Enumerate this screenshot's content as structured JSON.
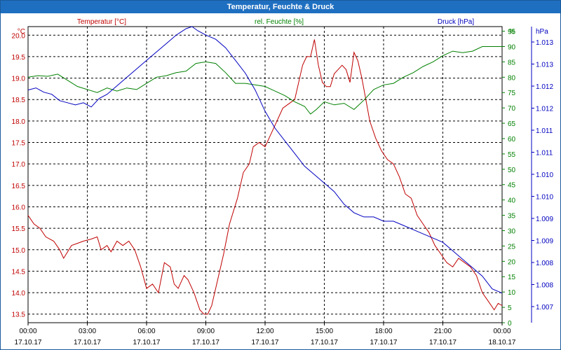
{
  "window": {
    "title": "Temperatur, Feuchte & Druck"
  },
  "colors": {
    "temperature": "#c00000",
    "humidity": "#008000",
    "pressure": "#0000c0",
    "grid": "#000000",
    "axis": "#000000",
    "titlebar": "#1f6fc1"
  },
  "chart_data": {
    "type": "line",
    "title": "Temperatur, Feuchte & Druck",
    "grid": true,
    "x": {
      "range_hours": [
        0,
        24
      ],
      "ticks": [
        {
          "time": "00:00",
          "date": "17.10.17"
        },
        {
          "time": "03:00",
          "date": "17.10.17"
        },
        {
          "time": "06:00",
          "date": "17.10.17"
        },
        {
          "time": "09:00",
          "date": "17.10.17"
        },
        {
          "time": "12:00",
          "date": "17.10.17"
        },
        {
          "time": "15:00",
          "date": "17.10.17"
        },
        {
          "time": "18:00",
          "date": "17.10.17"
        },
        {
          "time": "21:00",
          "date": "17.10.17"
        },
        {
          "time": "00:00",
          "date": "18.10.17"
        }
      ]
    },
    "axes": {
      "temperature": {
        "label": "Temperatur [°C]",
        "unit": "°C",
        "range": [
          13.3,
          20.2
        ],
        "ticks": [
          "13.5",
          "14.0",
          "14.5",
          "15.0",
          "15.5",
          "16.0",
          "16.5",
          "17.0",
          "17.5",
          "18.0",
          "18.5",
          "19.0",
          "19.5",
          "20.0"
        ]
      },
      "humidity": {
        "label": "rel. Feuchte [%]",
        "unit": "%",
        "range": [
          0,
          96.5
        ],
        "ticks": [
          "0",
          "5",
          "10",
          "15",
          "20",
          "25",
          "30",
          "35",
          "40",
          "45",
          "50",
          "55",
          "60",
          "65",
          "70",
          "75",
          "80",
          "85",
          "90",
          "95"
        ]
      },
      "pressure": {
        "label": "Druck [hPa]",
        "unit": "hPa",
        "range": [
          1.0065,
          1.0135
        ],
        "ticks": [
          "1.007",
          "1.008",
          "1.008",
          "1.009",
          "1.009",
          "1.010",
          "1.010",
          "1.011",
          "1.011",
          "1.012",
          "1.012",
          "1.013",
          "1.013"
        ]
      }
    },
    "series": [
      {
        "name": "Temperatur [°C]",
        "axis": "temperature",
        "points": [
          [
            0,
            15.8
          ],
          [
            0.3,
            15.6
          ],
          [
            0.6,
            15.5
          ],
          [
            0.9,
            15.3
          ],
          [
            1.3,
            15.2
          ],
          [
            1.6,
            15.0
          ],
          [
            1.8,
            14.8
          ],
          [
            2.2,
            15.1
          ],
          [
            2.5,
            15.15
          ],
          [
            2.8,
            15.2
          ],
          [
            3.2,
            15.25
          ],
          [
            3.5,
            15.3
          ],
          [
            3.7,
            15.0
          ],
          [
            4.0,
            15.1
          ],
          [
            4.2,
            14.95
          ],
          [
            4.5,
            15.2
          ],
          [
            4.8,
            15.1
          ],
          [
            5.1,
            15.2
          ],
          [
            5.4,
            15.0
          ],
          [
            5.7,
            14.6
          ],
          [
            6.0,
            14.1
          ],
          [
            6.3,
            14.2
          ],
          [
            6.6,
            14.0
          ],
          [
            6.9,
            14.7
          ],
          [
            7.2,
            14.6
          ],
          [
            7.4,
            14.2
          ],
          [
            7.6,
            14.1
          ],
          [
            7.9,
            14.4
          ],
          [
            8.1,
            14.3
          ],
          [
            8.4,
            14.0
          ],
          [
            8.7,
            13.6
          ],
          [
            8.9,
            13.5
          ],
          [
            9.1,
            13.5
          ],
          [
            9.3,
            13.7
          ],
          [
            9.6,
            14.3
          ],
          [
            9.9,
            14.9
          ],
          [
            10.2,
            15.6
          ],
          [
            10.6,
            16.2
          ],
          [
            10.9,
            16.8
          ],
          [
            11.2,
            17.0
          ],
          [
            11.4,
            17.4
          ],
          [
            11.7,
            17.5
          ],
          [
            12.0,
            17.4
          ],
          [
            12.3,
            17.7
          ],
          [
            12.6,
            18.0
          ],
          [
            12.9,
            18.3
          ],
          [
            13.2,
            18.4
          ],
          [
            13.5,
            18.5
          ],
          [
            13.7,
            18.9
          ],
          [
            13.9,
            19.3
          ],
          [
            14.1,
            19.5
          ],
          [
            14.3,
            19.5
          ],
          [
            14.5,
            19.9
          ],
          [
            14.7,
            19.3
          ],
          [
            14.9,
            18.9
          ],
          [
            15.1,
            18.8
          ],
          [
            15.3,
            18.8
          ],
          [
            15.5,
            19.1
          ],
          [
            15.7,
            19.2
          ],
          [
            15.9,
            19.3
          ],
          [
            16.1,
            19.2
          ],
          [
            16.3,
            18.9
          ],
          [
            16.5,
            19.6
          ],
          [
            16.7,
            19.4
          ],
          [
            16.9,
            19.0
          ],
          [
            17.1,
            18.5
          ],
          [
            17.3,
            18.0
          ],
          [
            17.6,
            17.6
          ],
          [
            17.9,
            17.3
          ],
          [
            18.2,
            17.1
          ],
          [
            18.5,
            17.0
          ],
          [
            18.8,
            16.7
          ],
          [
            19.1,
            16.3
          ],
          [
            19.4,
            16.2
          ],
          [
            19.7,
            15.8
          ],
          [
            20.0,
            15.6
          ],
          [
            20.3,
            15.4
          ],
          [
            20.6,
            15.1
          ],
          [
            20.9,
            14.9
          ],
          [
            21.2,
            14.7
          ],
          [
            21.5,
            14.6
          ],
          [
            21.8,
            14.8
          ],
          [
            22.1,
            14.7
          ],
          [
            22.4,
            14.6
          ],
          [
            22.7,
            14.4
          ],
          [
            23.0,
            14.0
          ],
          [
            23.3,
            13.8
          ],
          [
            23.6,
            13.6
          ],
          [
            23.8,
            13.75
          ],
          [
            24.0,
            13.7
          ]
        ]
      },
      {
        "name": "rel. Feuchte [%]",
        "axis": "humidity",
        "points": [
          [
            0,
            80
          ],
          [
            0.5,
            80.5
          ],
          [
            1.0,
            80.3
          ],
          [
            1.5,
            81
          ],
          [
            2.0,
            79
          ],
          [
            2.5,
            77
          ],
          [
            3.0,
            76
          ],
          [
            3.5,
            75
          ],
          [
            4.0,
            76.5
          ],
          [
            4.5,
            75.5
          ],
          [
            5.0,
            76.5
          ],
          [
            5.5,
            76
          ],
          [
            6.0,
            78
          ],
          [
            6.5,
            80
          ],
          [
            7.0,
            80.5
          ],
          [
            7.5,
            81.5
          ],
          [
            8.0,
            82
          ],
          [
            8.5,
            84.5
          ],
          [
            9.0,
            85
          ],
          [
            9.5,
            84.5
          ],
          [
            10.0,
            81.5
          ],
          [
            10.5,
            78
          ],
          [
            11.0,
            78
          ],
          [
            11.5,
            77.5
          ],
          [
            12.0,
            77
          ],
          [
            12.5,
            75.5
          ],
          [
            13.0,
            74
          ],
          [
            13.5,
            72
          ],
          [
            14.0,
            70.5
          ],
          [
            14.3,
            68
          ],
          [
            14.6,
            69.5
          ],
          [
            15.0,
            72
          ],
          [
            15.5,
            71
          ],
          [
            16.0,
            71.5
          ],
          [
            16.5,
            69.5
          ],
          [
            17.0,
            72.5
          ],
          [
            17.5,
            76
          ],
          [
            18.0,
            77.5
          ],
          [
            18.5,
            78
          ],
          [
            19.0,
            80
          ],
          [
            19.5,
            81.5
          ],
          [
            20.0,
            83.5
          ],
          [
            20.5,
            85
          ],
          [
            21.0,
            87
          ],
          [
            21.5,
            88.5
          ],
          [
            22.0,
            88
          ],
          [
            22.5,
            88.5
          ],
          [
            23.0,
            90
          ],
          [
            23.5,
            90
          ],
          [
            24.0,
            90
          ]
        ]
      },
      {
        "name": "Druck [hPa]",
        "axis": "pressure",
        "points": [
          [
            0,
            1.012
          ],
          [
            0.4,
            1.01205
          ],
          [
            0.8,
            1.01195
          ],
          [
            1.2,
            1.0119
          ],
          [
            1.6,
            1.01175
          ],
          [
            2.0,
            1.0117
          ],
          [
            2.4,
            1.01165
          ],
          [
            2.8,
            1.0117
          ],
          [
            3.2,
            1.0116
          ],
          [
            3.6,
            1.0118
          ],
          [
            4.0,
            1.0119
          ],
          [
            4.5,
            1.0121
          ],
          [
            5.0,
            1.0123
          ],
          [
            5.5,
            1.0125
          ],
          [
            6.0,
            1.0127
          ],
          [
            6.5,
            1.0129
          ],
          [
            7.0,
            1.0131
          ],
          [
            7.5,
            1.0133
          ],
          [
            8.0,
            1.01345
          ],
          [
            8.3,
            1.0135
          ],
          [
            8.6,
            1.0134
          ],
          [
            9.0,
            1.0133
          ],
          [
            9.5,
            1.0132
          ],
          [
            10.0,
            1.013
          ],
          [
            10.5,
            1.0127
          ],
          [
            11.0,
            1.0124
          ],
          [
            11.5,
            1.012
          ],
          [
            12.0,
            1.0115
          ],
          [
            12.5,
            1.0111
          ],
          [
            13.0,
            1.0108
          ],
          [
            13.5,
            1.0105
          ],
          [
            14.0,
            1.0102
          ],
          [
            14.5,
            1.01
          ],
          [
            15.0,
            1.0098
          ],
          [
            15.5,
            1.0096
          ],
          [
            16.0,
            1.0093
          ],
          [
            16.5,
            1.0091
          ],
          [
            17.0,
            1.009
          ],
          [
            17.5,
            1.009
          ],
          [
            18.0,
            1.0089
          ],
          [
            18.5,
            1.0089
          ],
          [
            19.0,
            1.0088
          ],
          [
            19.5,
            1.0087
          ],
          [
            20.0,
            1.0086
          ],
          [
            20.5,
            1.0085
          ],
          [
            21.0,
            1.0084
          ],
          [
            21.5,
            1.0082
          ],
          [
            22.0,
            1.008
          ],
          [
            22.5,
            1.0078
          ],
          [
            23.0,
            1.0076
          ],
          [
            23.5,
            1.0073
          ],
          [
            24.0,
            1.0072
          ]
        ]
      }
    ]
  }
}
